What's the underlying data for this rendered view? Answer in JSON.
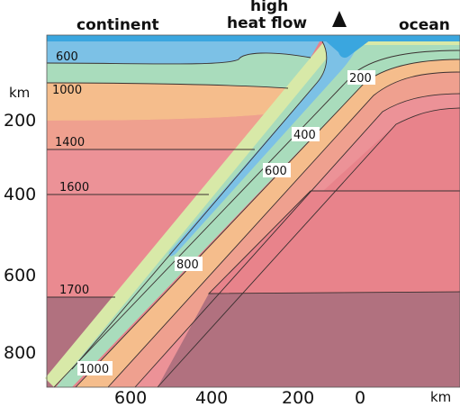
{
  "header": {
    "continent": "continent",
    "high_heat_flow_line1": "high",
    "high_heat_flow_line2": "heat flow",
    "ocean": "ocean"
  },
  "y_axis": {
    "unit": "km",
    "ticks": [
      "200",
      "400",
      "600",
      "800"
    ]
  },
  "x_axis": {
    "unit": "km",
    "ticks": [
      "600",
      "400",
      "200",
      "0"
    ]
  },
  "continent_isotherms": [
    "600",
    "1000",
    "1400",
    "1600",
    "1700"
  ],
  "slab_isotherms": [
    "200",
    "400",
    "600",
    "800",
    "1000"
  ],
  "colors": {
    "ocean": "#3aa6df",
    "band_cool": "#7cc1e6",
    "band_green": "#a9dcbc",
    "band_orange": "#f5bd8c",
    "band_salmon": "#eea08f",
    "band_pink": "#ec8e91",
    "band_deep": "#e8838b",
    "band_bottom": "#b1717f"
  }
}
